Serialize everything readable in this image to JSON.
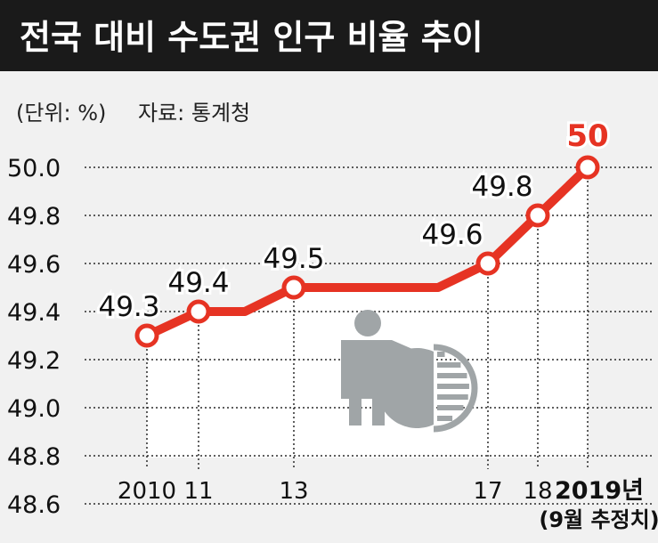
{
  "header": {
    "title": "전국 대비 수도권 인구 비율 추이",
    "unit": "(단위: %)",
    "source": "자료: 통계청"
  },
  "colors": {
    "title_bg": "#1a1a1a",
    "title_text": "#ffffff",
    "background": "#f1f1f1",
    "plot_area": "#ffffff",
    "line": "#e63323",
    "point_fill": "#ffffff",
    "highlight_label": "#e63323",
    "label": "#111111",
    "icon": "#a0a5a7"
  },
  "chart_data": {
    "type": "line",
    "title": "전국 대비 수도권 인구 비율 추이",
    "unit": "(단위: %)",
    "source": "자료: 통계청",
    "x_tick_labels": [
      "2010",
      "11",
      "13",
      "17",
      "18",
      "2019년"
    ],
    "x_note": "(9월 추정치)",
    "y_tick_labels": [
      "48.6",
      "48.8",
      "49.0",
      "49.2",
      "49.4",
      "49.6",
      "49.8",
      "50.0"
    ],
    "ylim": [
      48.6,
      50.0
    ],
    "grid": true,
    "points": [
      {
        "x": 2010,
        "y": 49.3,
        "label": "49.3"
      },
      {
        "x": 2011,
        "y": 49.4,
        "label": "49.4"
      },
      {
        "x": 2013,
        "y": 49.5,
        "label": "49.5"
      },
      {
        "x": 2017,
        "y": 49.6,
        "label": "49.6"
      },
      {
        "x": 2018,
        "y": 49.8,
        "label": "49.8"
      },
      {
        "x": 2019,
        "y": 50.0,
        "label": "50",
        "highlight": true
      }
    ],
    "line_path": [
      {
        "x": 2010,
        "y": 49.3
      },
      {
        "x": 2011,
        "y": 49.4
      },
      {
        "x": 2012,
        "y": 49.4
      },
      {
        "x": 2013,
        "y": 49.5
      },
      {
        "x": 2016,
        "y": 49.5
      },
      {
        "x": 2017,
        "y": 49.6
      },
      {
        "x": 2018,
        "y": 49.8
      },
      {
        "x": 2019,
        "y": 50.0
      }
    ]
  }
}
